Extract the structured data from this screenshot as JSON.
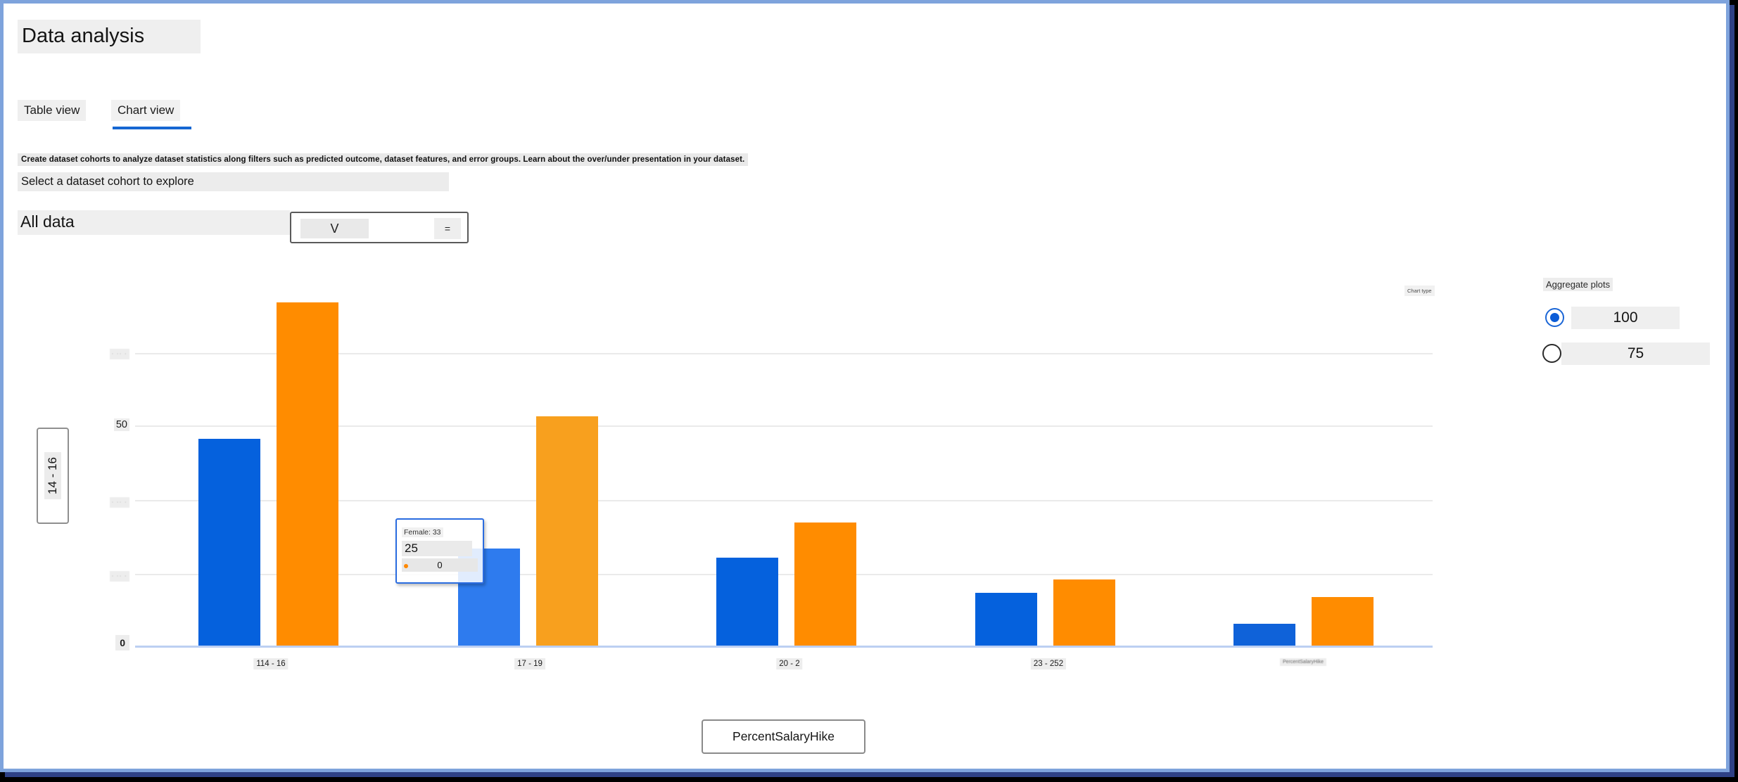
{
  "window": {
    "title": "Data analysis"
  },
  "tabs": [
    {
      "label": "Table view",
      "active": false
    },
    {
      "label": "Chart view",
      "active": true
    }
  ],
  "description": "Create dataset cohorts to analyze dataset statistics along filters such as predicted outcome, dataset features, and error groups. Learn about the over/under presentation in your dataset.",
  "cohort_section": {
    "heading": "Select a dataset cohort to explore",
    "selected_cohort": "All data",
    "dropdown_chevron": "V",
    "dropdown_equals": "="
  },
  "chart": {
    "chart_type_label": "Chart type",
    "y_axis_box_label": "14 - 16",
    "x_axis_button_label": "PercentSalaryHike",
    "y_ticks": [
      "· ·· ·",
      "50",
      "· ·· ·",
      "· ·· ·",
      "0"
    ],
    "x_ticks": [
      "114 - 16",
      "17 - 19",
      "20 - 2",
      "23 - 252",
      "PercentSalaryHike"
    ],
    "tooltip": {
      "line1": "Female: 33",
      "line2": "25",
      "line3": "0"
    }
  },
  "chart_data": {
    "type": "bar",
    "title": "",
    "xlabel": "PercentSalaryHike",
    "ylabel": "14 - 16",
    "categories": [
      "114 - 16",
      "17 - 19",
      "20 - 2",
      "23 - 252",
      "PercentSalaryHike"
    ],
    "series": [
      {
        "name": "blue",
        "color": "#0561dd",
        "colors": [
          "#0561dd",
          "#2e7bee",
          "#0561dd",
          "#0561dd",
          "#0f62d9"
        ],
        "values": [
          47,
          22,
          20,
          12,
          5
        ]
      },
      {
        "name": "orange",
        "color": "#ff8c00",
        "colors": [
          "#ff8c00",
          "#f8a01e",
          "#ff8c00",
          "#ff8c00",
          "#ff8c00"
        ],
        "values": [
          78,
          52,
          28,
          15,
          11
        ]
      }
    ],
    "visible_y_tick_labels": [
      "50",
      "0"
    ],
    "ylim": [
      0,
      80
    ],
    "grid": true,
    "legend_position": "none",
    "hover_tooltip": {
      "label": "Female: 33",
      "values": [
        25,
        0
      ]
    }
  },
  "aggregate_panel": {
    "heading": "Aggregate plots",
    "options": [
      {
        "label": "100",
        "selected": true
      },
      {
        "label": "75",
        "selected": false
      }
    ]
  },
  "colors": {
    "accent_blue": "#1667d2",
    "bar_blue": "#0561dd",
    "bar_orange": "#ff8c00",
    "window_border": "#7ea3dc",
    "baseline_blue": "#bccff2",
    "tooltip_border": "#2a6ce0"
  }
}
